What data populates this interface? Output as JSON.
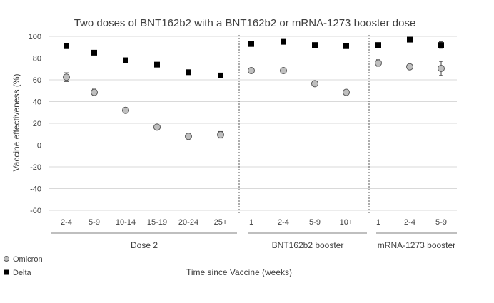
{
  "chart_data": {
    "type": "scatter",
    "title": "Two doses of BNT162b2 with a BNT162b2 or mRNA-1273 booster dose",
    "xlabel": "Time since Vaccine (weeks)",
    "ylabel": "Vaccine effectiveness (%)",
    "ylim": [
      -60,
      100
    ],
    "yticks": [
      100,
      80,
      60,
      40,
      20,
      0,
      -20,
      -40,
      -60
    ],
    "grid": true,
    "legend_position": "bottom-left",
    "groups": [
      {
        "name": "Dose 2",
        "categories": [
          "2-4",
          "5-9",
          "10-14",
          "15-19",
          "20-24",
          "25+"
        ]
      },
      {
        "name": "BNT162b2 booster",
        "categories": [
          "1",
          "2-4",
          "5-9",
          "10+"
        ]
      },
      {
        "name": "mRNA-1273 booster",
        "categories": [
          "1",
          "2-4",
          "5-9"
        ]
      }
    ],
    "categories": [
      "2-4",
      "5-9",
      "10-14",
      "15-19",
      "20-24",
      "25+",
      "1",
      "2-4",
      "5-9",
      "10+",
      "1",
      "2-4",
      "5-9"
    ],
    "series": [
      {
        "name": "Omicron",
        "marker": "circle",
        "color": "#bfbfbf",
        "values": [
          62.5,
          48.5,
          32,
          16.5,
          8,
          9.5,
          68.5,
          68.5,
          56.5,
          48.5,
          75.5,
          72,
          70.5
        ],
        "error": [
          4,
          3,
          1.5,
          2,
          2,
          3,
          1.5,
          1.5,
          1.5,
          1.5,
          3,
          2,
          6.5
        ]
      },
      {
        "name": "Delta",
        "marker": "square",
        "color": "#000000",
        "values": [
          91,
          85,
          78,
          74,
          67,
          64,
          93,
          95,
          92,
          91,
          92,
          97,
          92
        ],
        "error": [
          0.5,
          0.5,
          0.5,
          0.5,
          0.5,
          0.5,
          0.5,
          0.5,
          0.5,
          0.5,
          0.5,
          0.5,
          3
        ]
      }
    ]
  }
}
